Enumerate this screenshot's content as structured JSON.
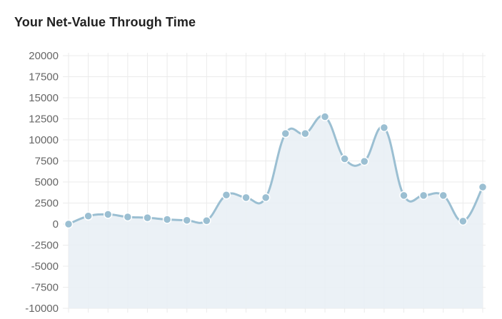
{
  "header": {
    "title": "Your Net-Value Through Time"
  },
  "chart_data": {
    "type": "area",
    "title": "Your Net-Value Through Time",
    "xlabel": "",
    "ylabel": "",
    "ylim": [
      -10000,
      20000
    ],
    "yticks": [
      20000,
      17500,
      15000,
      12500,
      10000,
      7500,
      5000,
      2500,
      0,
      -2500,
      -5000,
      -7500,
      -10000
    ],
    "grid": true,
    "legend": "none",
    "line_color": "#9bbfd2",
    "fill_color": "#e9f0f5",
    "grid_color": "#ebebeb",
    "series": [
      {
        "values": [
          0,
          950,
          1150,
          850,
          750,
          550,
          450,
          400,
          3450,
          3150,
          3150,
          10750,
          10750,
          12750,
          7750,
          7450,
          11450,
          3400,
          3400,
          3400,
          350,
          4400
        ]
      }
    ]
  }
}
